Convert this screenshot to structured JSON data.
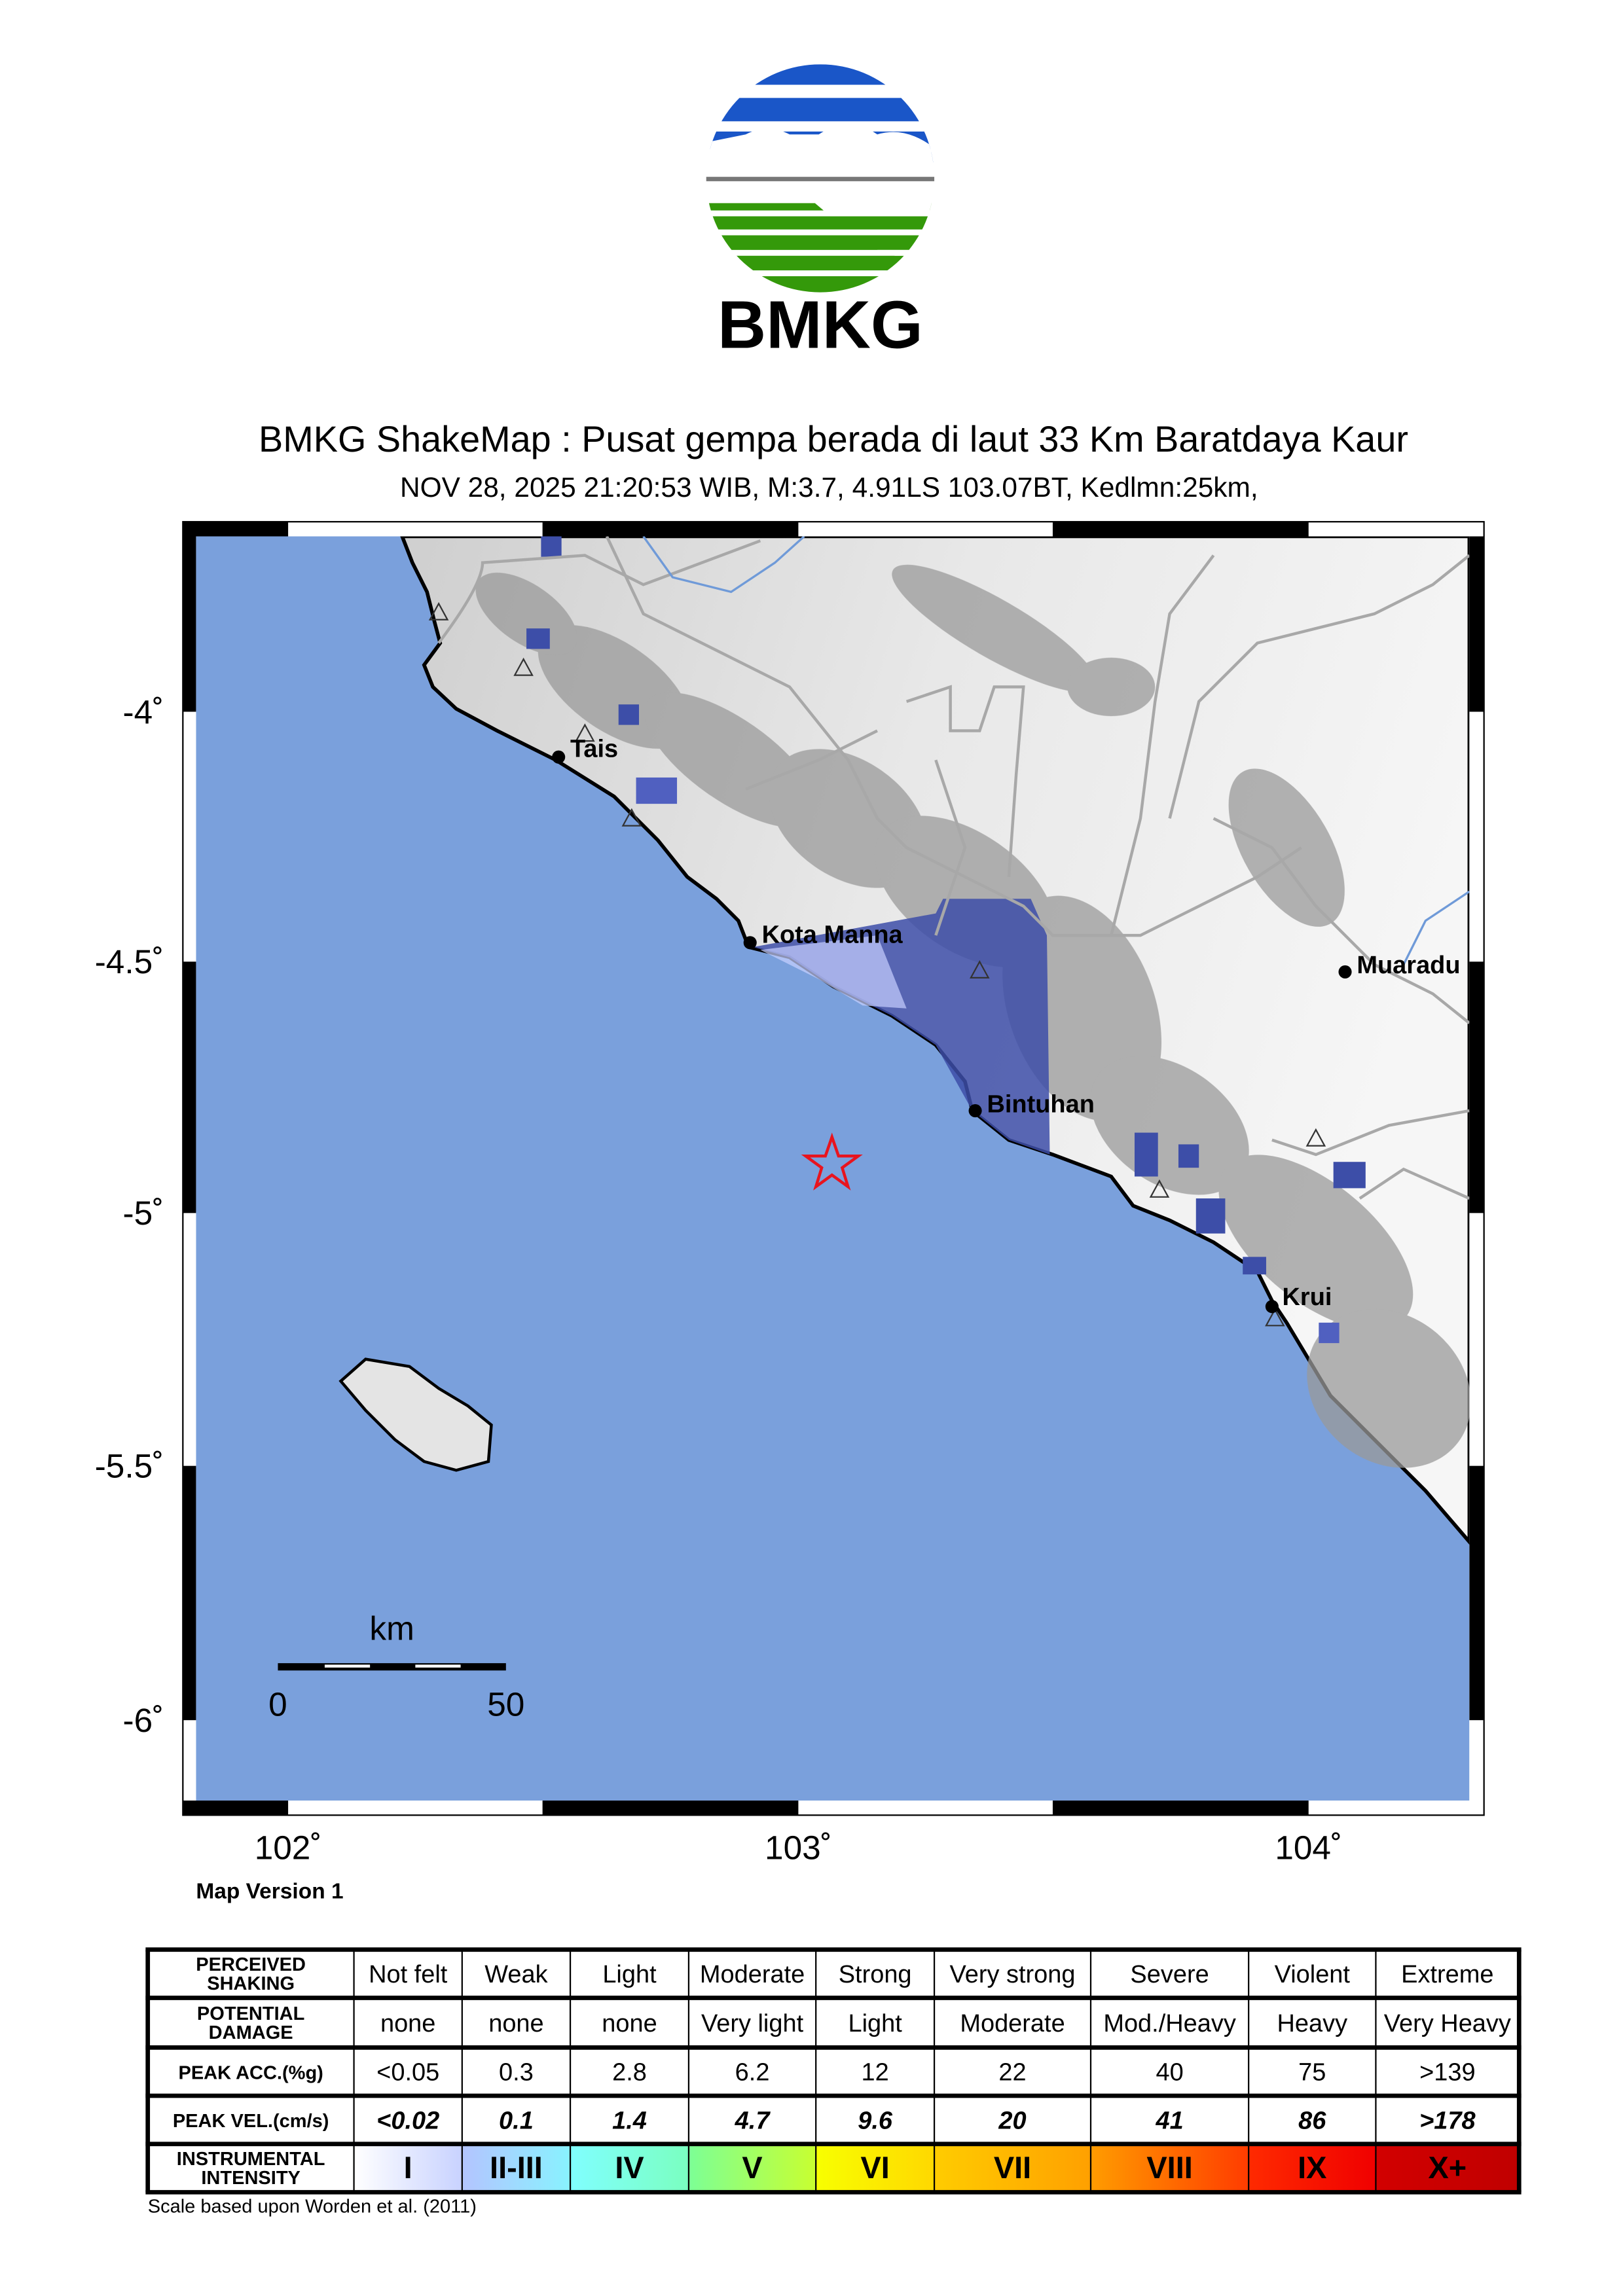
{
  "logo": {
    "text": "BMKG",
    "colors": {
      "blue": "#1a56c8",
      "green": "#34990a",
      "gray": "#777777"
    }
  },
  "title": "BMKG ShakeMap : Pusat gempa berada di laut 33 Km Baratdaya Kaur",
  "subtitle": "NOV 28, 2025 21:20:53 WIB, M:3.7, 4.91LS 103.07BT, Kedlmn:25km,",
  "map": {
    "lat_labels": [
      "-4˚",
      "-4.5˚",
      "-5˚",
      "-5.5˚",
      "-6˚"
    ],
    "lon_labels": [
      "102˚",
      "103˚",
      "104˚"
    ],
    "cities": [
      "Tais",
      "Kota Manna",
      "Muaradu",
      "Bintuhan",
      "Krui"
    ],
    "epicenter": {
      "lat": -4.91,
      "lon": 103.07,
      "icon": "star-icon",
      "color": "#e8141e"
    },
    "station_icon": "triangle-icon",
    "sea_color": "#7aa0dc",
    "scale": {
      "unit": "km",
      "min": "0",
      "max": "50"
    },
    "version": "Map Version 1"
  },
  "legend": {
    "row_headers": [
      [
        "PERCEIVED",
        "SHAKING"
      ],
      [
        "POTENTIAL",
        "DAMAGE"
      ],
      [
        "PEAK ACC.(%g)"
      ],
      [
        "PEAK VEL.(cm/s)"
      ],
      [
        "INSTRUMENTAL",
        "INTENSITY"
      ]
    ],
    "shaking": [
      "Not felt",
      "Weak",
      "Light",
      "Moderate",
      "Strong",
      "Very strong",
      "Severe",
      "Violent",
      "Extreme"
    ],
    "damage": [
      "none",
      "none",
      "none",
      "Very light",
      "Light",
      "Moderate",
      "Mod./Heavy",
      "Heavy",
      "Very Heavy"
    ],
    "acc": [
      "<0.05",
      "0.3",
      "2.8",
      "6.2",
      "12",
      "22",
      "40",
      "75",
      ">139"
    ],
    "vel": [
      "<0.02",
      "0.1",
      "1.4",
      "4.7",
      "9.6",
      "20",
      "41",
      "86",
      ">178"
    ],
    "intensity": [
      "I",
      "II-III",
      "IV",
      "V",
      "VI",
      "VII",
      "VIII",
      "IX",
      "X+"
    ],
    "intensity_colors": [
      [
        "#ffffff",
        "#c8d2ff"
      ],
      [
        "#b4c4ff",
        "#88f2ff"
      ],
      [
        "#80ffff",
        "#7affc0"
      ],
      [
        "#7cff96",
        "#c8ff30"
      ],
      [
        "#f8ff00",
        "#ffd800"
      ],
      [
        "#ffcc00",
        "#ffa000"
      ],
      [
        "#ff9c00",
        "#ff3c00"
      ],
      [
        "#ff2a00",
        "#f00000"
      ],
      [
        "#d20000",
        "#c00000"
      ]
    ],
    "footnote": "Scale based upon Worden et al. (2011)"
  }
}
